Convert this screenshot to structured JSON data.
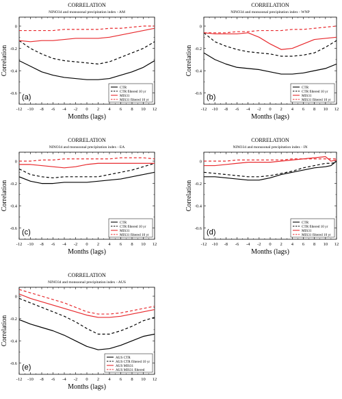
{
  "chart_data": [
    {
      "id": "a",
      "type": "line",
      "panel_label": "(a)",
      "title": "CORRELATION",
      "subtitle": "NINO34 and monsoonal precipitation index - AM",
      "xlabel": "Months (lags)",
      "ylabel": "Correlation",
      "xlim": [
        -12,
        12
      ],
      "ylim": [
        -0.7,
        0.08
      ],
      "x": [
        -12,
        -10,
        -8,
        -6,
        -4,
        -2,
        0,
        2,
        4,
        6,
        8,
        10,
        12
      ],
      "xticks": [
        "-12",
        "-10",
        "-8",
        "-6",
        "-4",
        "-2",
        "0",
        "2",
        "4",
        "6",
        "8",
        "10",
        "12"
      ],
      "yticks": [
        "0",
        "-0.2",
        "-0.4",
        "-0.6"
      ],
      "legend_position": "lower-right",
      "series": [
        {
          "name": "CTR",
          "color": "#000000",
          "dash": "solid",
          "values": [
            -0.31,
            -0.36,
            -0.41,
            -0.44,
            -0.46,
            -0.47,
            -0.48,
            -0.48,
            -0.47,
            -0.44,
            -0.41,
            -0.37,
            -0.31
          ]
        },
        {
          "name": "CTR filtered 10 yr",
          "color": "#000000",
          "dash": "dashed",
          "values": [
            -0.13,
            -0.2,
            -0.25,
            -0.29,
            -0.31,
            -0.32,
            -0.33,
            -0.34,
            -0.32,
            -0.28,
            -0.24,
            -0.2,
            -0.14
          ]
        },
        {
          "name": "MIS31",
          "color": "#e8282c",
          "dash": "solid",
          "values": [
            -0.13,
            -0.14,
            -0.13,
            -0.13,
            -0.12,
            -0.11,
            -0.11,
            -0.11,
            -0.1,
            -0.08,
            -0.06,
            -0.04,
            -0.02
          ]
        },
        {
          "name": "MIS31 filtered 10 yr",
          "color": "#e8282c",
          "dash": "dashed",
          "values": [
            -0.04,
            -0.04,
            -0.04,
            -0.04,
            -0.03,
            -0.03,
            -0.03,
            -0.03,
            -0.02,
            -0.02,
            -0.01,
            0.0,
            0.0
          ]
        }
      ]
    },
    {
      "id": "b",
      "type": "line",
      "panel_label": "(b)",
      "title": "CORRELATION",
      "subtitle": "NINO34 and monsoonal precipitation index - WNP",
      "xlabel": "Months (lags)",
      "ylabel": "Correlation",
      "xlim": [
        -12,
        12
      ],
      "ylim": [
        -0.7,
        0.08
      ],
      "x": [
        -12,
        -10,
        -8,
        -6,
        -4,
        -2,
        0,
        2,
        4,
        6,
        8,
        10,
        12
      ],
      "xticks": [
        "-12",
        "-10",
        "-8",
        "-6",
        "-4",
        "-2",
        "0",
        "2",
        "4",
        "6",
        "8",
        "10",
        "12"
      ],
      "yticks": [
        "0",
        "-0.2",
        "-0.4",
        "-0.6"
      ],
      "legend_position": "lower-right",
      "series": [
        {
          "name": "CTR",
          "color": "#000000",
          "dash": "solid",
          "values": [
            -0.24,
            -0.3,
            -0.34,
            -0.37,
            -0.38,
            -0.39,
            -0.41,
            -0.43,
            -0.43,
            -0.42,
            -0.4,
            -0.38,
            -0.34
          ]
        },
        {
          "name": "CTR filtered 10 yr",
          "color": "#000000",
          "dash": "dashed",
          "values": [
            -0.06,
            -0.14,
            -0.18,
            -0.21,
            -0.23,
            -0.24,
            -0.25,
            -0.27,
            -0.27,
            -0.26,
            -0.24,
            -0.19,
            -0.13
          ]
        },
        {
          "name": "MIS31",
          "color": "#e8282c",
          "dash": "solid",
          "values": [
            -0.06,
            -0.07,
            -0.07,
            -0.07,
            -0.06,
            -0.1,
            -0.16,
            -0.21,
            -0.2,
            -0.16,
            -0.12,
            -0.11,
            -0.1
          ]
        },
        {
          "name": "MIS31 filtered 10 yr",
          "color": "#e8282c",
          "dash": "dashed",
          "values": [
            -0.06,
            -0.06,
            -0.06,
            -0.05,
            -0.05,
            -0.04,
            -0.04,
            -0.04,
            -0.03,
            -0.03,
            -0.02,
            -0.01,
            0.0
          ]
        }
      ]
    },
    {
      "id": "c",
      "type": "line",
      "panel_label": "(c)",
      "title": "CORRELATION",
      "subtitle": "NINO34 and monsoonal precipitation index - EA",
      "xlabel": "Months (lags)",
      "ylabel": "Correlation",
      "xlim": [
        -12,
        12
      ],
      "ylim": [
        -0.7,
        0.08
      ],
      "x": [
        -12,
        -10,
        -8,
        -6,
        -4,
        -2,
        0,
        2,
        4,
        6,
        8,
        10,
        12
      ],
      "xticks": [
        "-12",
        "-10",
        "-8",
        "-6",
        "-4",
        "-2",
        "0",
        "2",
        "4",
        "6",
        "8",
        "10",
        "12"
      ],
      "yticks": [
        "0",
        "-0.2",
        "-0.4",
        "-0.6"
      ],
      "legend_position": "lower-right",
      "series": [
        {
          "name": "CTR",
          "color": "#000000",
          "dash": "solid",
          "values": [
            -0.14,
            -0.18,
            -0.2,
            -0.2,
            -0.19,
            -0.19,
            -0.19,
            -0.18,
            -0.17,
            -0.16,
            -0.14,
            -0.12,
            -0.1
          ]
        },
        {
          "name": "CTR filtered 10 yr",
          "color": "#000000",
          "dash": "dashed",
          "values": [
            -0.07,
            -0.12,
            -0.14,
            -0.15,
            -0.14,
            -0.14,
            -0.14,
            -0.14,
            -0.12,
            -0.1,
            -0.08,
            -0.05,
            -0.02
          ]
        },
        {
          "name": "MIS31",
          "color": "#e8282c",
          "dash": "solid",
          "values": [
            -0.03,
            -0.03,
            -0.04,
            -0.05,
            -0.06,
            -0.05,
            -0.03,
            -0.02,
            -0.02,
            -0.02,
            -0.02,
            -0.02,
            -0.02
          ]
        },
        {
          "name": "MIS31 filtered 10 yr",
          "color": "#e8282c",
          "dash": "dashed",
          "values": [
            0.0,
            0.0,
            0.01,
            0.01,
            0.02,
            0.02,
            0.02,
            0.02,
            0.02,
            0.03,
            0.03,
            0.03,
            0.02
          ]
        }
      ]
    },
    {
      "id": "d",
      "type": "line",
      "panel_label": "(d)",
      "title": "CORRELATION",
      "subtitle": "NINO34 and monsoonal precipitation index - IN",
      "xlabel": "Months (lags)",
      "ylabel": "Correlation",
      "xlim": [
        -12,
        12
      ],
      "ylim": [
        -0.7,
        0.08
      ],
      "x": [
        -12,
        -10,
        -8,
        -6,
        -4,
        -2,
        0,
        2,
        4,
        6,
        8,
        10,
        11,
        12
      ],
      "xticks": [
        "-12",
        "-10",
        "-8",
        "-6",
        "-4",
        "-2",
        "0",
        "2",
        "4",
        "6",
        "8",
        "10",
        "12"
      ],
      "yticks": [
        "0",
        "-0.2",
        "-0.4",
        "-0.6"
      ],
      "legend_position": "lower-right",
      "series": [
        {
          "name": "CTR",
          "color": "#000000",
          "dash": "solid",
          "values": [
            -0.14,
            -0.14,
            -0.15,
            -0.16,
            -0.17,
            -0.17,
            -0.15,
            -0.12,
            -0.1,
            -0.08,
            -0.06,
            -0.05,
            -0.04,
            0.0
          ]
        },
        {
          "name": "CTR filtered 10 yr",
          "color": "#000000",
          "dash": "dashed",
          "values": [
            -0.1,
            -0.11,
            -0.12,
            -0.13,
            -0.14,
            -0.14,
            -0.13,
            -0.11,
            -0.09,
            -0.06,
            -0.04,
            -0.02,
            -0.02,
            -0.01
          ]
        },
        {
          "name": "MIS31",
          "color": "#e8282c",
          "dash": "solid",
          "values": [
            -0.04,
            -0.04,
            -0.03,
            -0.02,
            -0.01,
            -0.01,
            -0.01,
            0.0,
            0.01,
            0.02,
            0.03,
            0.04,
            0.0,
            0.01
          ]
        },
        {
          "name": "MIS31 filtered 10 yr",
          "color": "#e8282c",
          "dash": "dashed",
          "values": [
            0.0,
            0.0,
            0.0,
            0.01,
            0.01,
            0.01,
            0.01,
            0.01,
            0.02,
            0.02,
            0.02,
            0.02,
            0.02,
            0.02
          ]
        }
      ]
    },
    {
      "id": "e",
      "type": "line",
      "panel_label": "(e)",
      "title": "CORRELATION",
      "subtitle": "NINO34 and monsoonal precipitation index - AUS",
      "xlabel": "Months (lags)",
      "ylabel": "Correlation",
      "xlim": [
        -12,
        12
      ],
      "ylim": [
        -0.7,
        0.08
      ],
      "x": [
        -12,
        -10,
        -8,
        -6,
        -4,
        -2,
        0,
        2,
        4,
        6,
        8,
        10,
        12
      ],
      "xticks": [
        "-12",
        "-10",
        "-8",
        "-6",
        "-4",
        "-2",
        "0",
        "2",
        "4",
        "6",
        "8",
        "10",
        "12"
      ],
      "yticks": [
        "0",
        "-0.2",
        "-0.4",
        "-0.6"
      ],
      "legend_position": "lower-right",
      "series": [
        {
          "name": "AUS CTR",
          "color": "#000000",
          "dash": "solid",
          "values": [
            -0.21,
            -0.25,
            -0.28,
            -0.31,
            -0.35,
            -0.4,
            -0.45,
            -0.48,
            -0.47,
            -0.44,
            -0.4,
            -0.36,
            -0.34
          ]
        },
        {
          "name": "AUS CTR filtered 10 yr",
          "color": "#000000",
          "dash": "dashed",
          "values": [
            -0.02,
            -0.06,
            -0.1,
            -0.14,
            -0.18,
            -0.23,
            -0.29,
            -0.34,
            -0.34,
            -0.31,
            -0.27,
            -0.22,
            -0.19
          ]
        },
        {
          "name": "AUS MIS31",
          "color": "#e8282c",
          "dash": "solid",
          "values": [
            0.02,
            -0.02,
            -0.05,
            -0.08,
            -0.11,
            -0.14,
            -0.17,
            -0.19,
            -0.19,
            -0.18,
            -0.16,
            -0.14,
            -0.12
          ]
        },
        {
          "name": "AUS MIS31 filtered",
          "color": "#e8282c",
          "dash": "dashed",
          "values": [
            0.06,
            0.03,
            0.0,
            -0.03,
            -0.06,
            -0.1,
            -0.14,
            -0.16,
            -0.16,
            -0.15,
            -0.13,
            -0.11,
            -0.09
          ]
        }
      ]
    }
  ]
}
